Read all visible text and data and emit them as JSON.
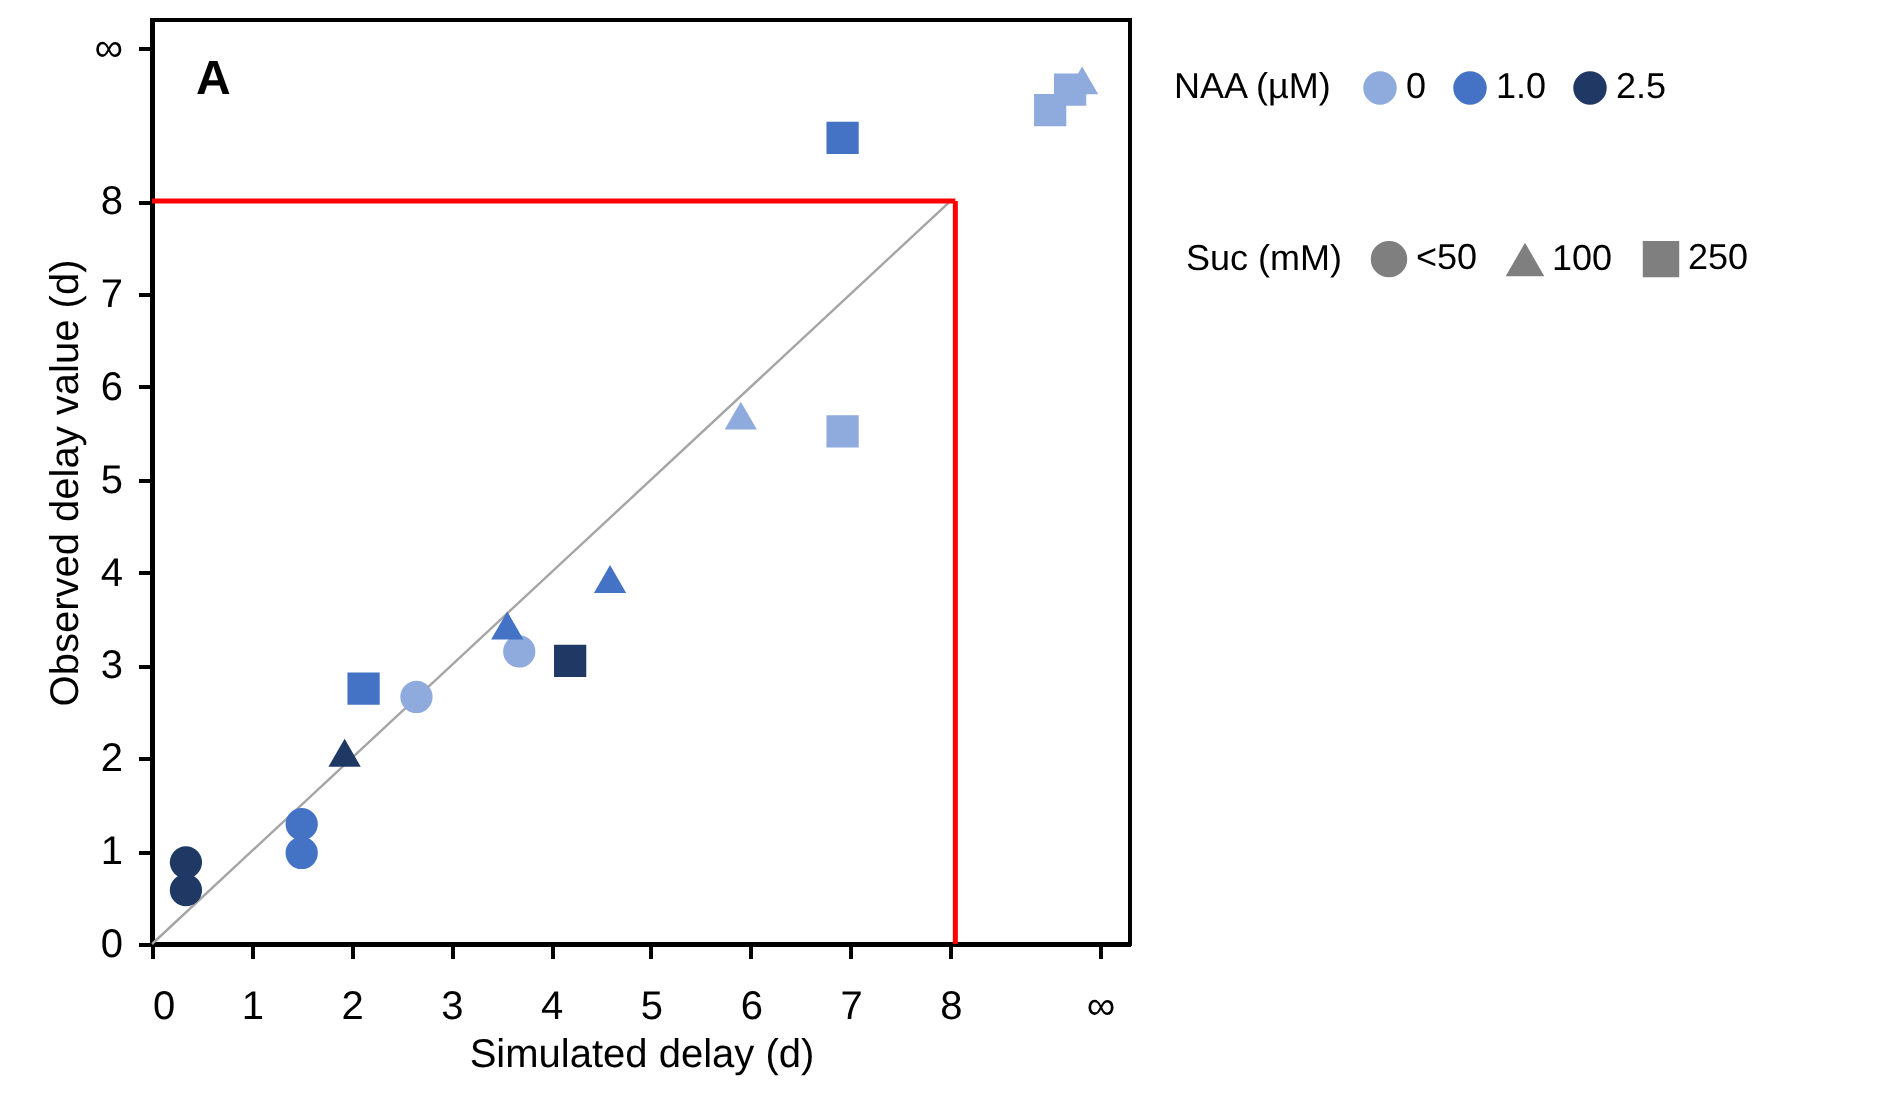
{
  "chart_data": {
    "type": "scatter",
    "xlabel": "Simulated delay (d)",
    "ylabel": "Observed delay value (d)",
    "annotations": [
      "A"
    ],
    "legend_title": [
      "NAA (µM)",
      "Suc (mM)"
    ],
    "legend": "right",
    "xlim": [
      0,
      9.8
    ],
    "ylim": [
      0,
      9.95
    ],
    "xticks": [
      0,
      1,
      2,
      3,
      4,
      5,
      6,
      7,
      8,
      {
        "value": 9.5,
        "label": "∞"
      }
    ],
    "yticks": [
      0,
      1,
      2,
      3,
      4,
      5,
      6,
      7,
      8,
      {
        "value": 9.65,
        "label": "∞"
      }
    ],
    "grid": false,
    "ref_lines": [
      {
        "axis": "x",
        "value": 8.05,
        "color": "#ff0000"
      },
      {
        "axis": "y",
        "value": 8.0,
        "color": "#ff0000"
      }
    ],
    "series": [
      {
        "type": "line",
        "x": [
          0,
          8
        ],
        "values": [
          0,
          8
        ],
        "color": "#a5a5a5",
        "line_style": "solid"
      },
      {
        "name": "0",
        "color": "#8faadc",
        "marker": "circle",
        "x": [
          2.65,
          3.68
        ],
        "values": [
          2.66,
          3.15
        ]
      },
      {
        "name": "1.0",
        "color": "#4472c4",
        "marker": "circle",
        "x": [
          1.5,
          1.5
        ],
        "values": [
          1.29,
          0.98
        ]
      },
      {
        "name": "2.5",
        "color": "#203864",
        "marker": "circle",
        "x": [
          0.34,
          0.34
        ],
        "values": [
          0.88,
          0.58
        ]
      },
      {
        "color": "#203864",
        "marker": "square",
        "x": [
          4.19
        ],
        "values": [
          3.05
        ]
      },
      {
        "color": "#4472c4",
        "marker": "square",
        "x": [
          2.12,
          6.92
        ],
        "values": [
          2.75,
          8.68
        ]
      },
      {
        "color": "#8faadc",
        "marker": "square",
        "x": [
          6.92,
          9.0,
          9.2
        ],
        "values": [
          5.52,
          8.98,
          9.2
        ]
      },
      {
        "color": "#203864",
        "marker": "triangle",
        "x": [
          1.93
        ],
        "values": [
          2.06
        ]
      },
      {
        "color": "#4472c4",
        "marker": "triangle",
        "x": [
          3.56,
          4.59
        ],
        "values": [
          3.43,
          3.93
        ]
      },
      {
        "color": "#8faadc",
        "marker": "triangle",
        "x": [
          5.9,
          9.32
        ],
        "values": [
          5.69,
          9.3
        ]
      },
      {
        "name": "<50",
        "color": "#7f7f7f",
        "marker": "circle"
      },
      {
        "name": "100",
        "color": "#7f7f7f",
        "marker": "triangle"
      },
      {
        "name": "250",
        "color": "#7f7f7f",
        "marker": "square"
      }
    ]
  }
}
